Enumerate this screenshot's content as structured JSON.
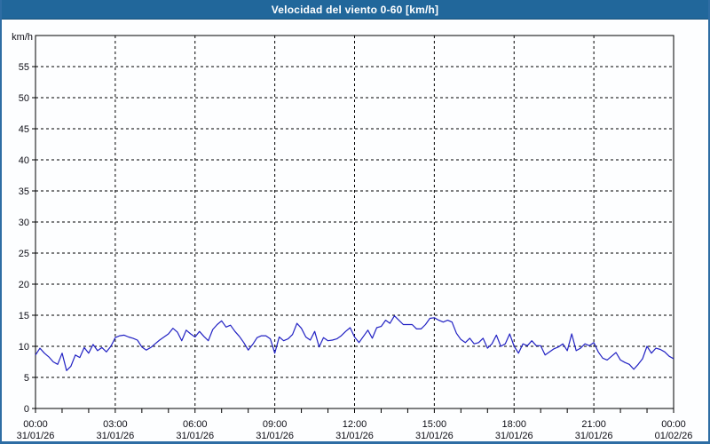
{
  "header": {
    "title": "Velocidad del viento 0-60 [km/h]"
  },
  "colors": {
    "header_bg": "#21679b",
    "frame_border": "#2e6da4",
    "plot_bg": "#fdfeff",
    "grid_color": "#000000",
    "line_color": "#2121c3",
    "title_color": "#ffffff",
    "tick_text_color": "#0c0c14"
  },
  "chart_data": {
    "type": "line",
    "title": "Velocidad del viento 0-60 [km/h]",
    "ylabel": "km/h",
    "ylim": [
      0,
      60
    ],
    "grid": "dashed",
    "legend": "none",
    "y_ticks": [
      0,
      5,
      10,
      15,
      20,
      25,
      30,
      35,
      40,
      45,
      50,
      55
    ],
    "x_hours_range": [
      0,
      24
    ],
    "x_axis": {
      "minor_tick_every_hours": 1,
      "major_tick_every_hours": 3,
      "labels": [
        {
          "hour": 0,
          "time": "00:00",
          "date": "31/01/26"
        },
        {
          "hour": 3,
          "time": "03:00",
          "date": "31/01/26"
        },
        {
          "hour": 6,
          "time": "06:00",
          "date": "31/01/26"
        },
        {
          "hour": 9,
          "time": "09:00",
          "date": "31/01/26"
        },
        {
          "hour": 12,
          "time": "12:00",
          "date": "31/01/26"
        },
        {
          "hour": 15,
          "time": "15:00",
          "date": "31/01/26"
        },
        {
          "hour": 18,
          "time": "18:00",
          "date": "31/01/26"
        },
        {
          "hour": 21,
          "time": "21:00",
          "date": "31/01/26"
        },
        {
          "hour": 24,
          "time": "00:00",
          "date": "01/02/26"
        }
      ]
    },
    "series": [
      {
        "name": "Velocidad del viento",
        "start_hour": 0,
        "interval_minutes": 10,
        "unit": "km/h",
        "values": [
          8.6,
          9.7,
          8.9,
          8.3,
          7.5,
          7.1,
          8.9,
          6.1,
          6.8,
          8.6,
          8.2,
          9.8,
          8.9,
          10.3,
          9.3,
          9.8,
          9.1,
          10.0,
          11.4,
          11.7,
          11.8,
          11.5,
          11.3,
          11.0,
          9.9,
          9.4,
          9.8,
          10.4,
          11.0,
          11.5,
          12.0,
          12.9,
          12.3,
          10.9,
          12.6,
          12.0,
          11.5,
          12.4,
          11.6,
          10.9,
          12.7,
          13.5,
          14.1,
          13.1,
          13.4,
          12.4,
          11.6,
          10.6,
          9.4,
          10.3,
          11.4,
          11.7,
          11.7,
          11.2,
          8.9,
          11.5,
          10.9,
          11.2,
          11.9,
          13.7,
          12.9,
          11.5,
          11.0,
          12.4,
          9.9,
          11.4,
          10.9,
          11.0,
          11.2,
          11.7,
          12.4,
          13.0,
          11.5,
          10.6,
          11.6,
          12.6,
          11.3,
          13.0,
          13.2,
          14.2,
          13.7,
          14.9,
          14.2,
          13.5,
          13.5,
          13.5,
          12.8,
          12.8,
          13.5,
          14.5,
          14.6,
          14.2,
          13.9,
          14.2,
          13.9,
          12.1,
          11.1,
          10.6,
          11.3,
          10.4,
          10.6,
          11.3,
          9.7,
          10.4,
          11.8,
          10.0,
          10.4,
          12.0,
          10.0,
          8.9,
          10.4,
          10.1,
          10.9,
          10.1,
          10.1,
          8.6,
          9.1,
          9.6,
          9.9,
          10.4,
          9.3,
          12.0,
          9.3,
          9.7,
          10.4,
          10.1,
          10.6,
          9.1,
          8.1,
          7.8,
          8.4,
          9.0,
          7.8,
          7.4,
          7.1,
          6.3,
          7.1,
          8.0,
          10.0,
          8.9,
          9.7,
          9.5,
          9.1,
          8.4,
          8.0
        ]
      }
    ]
  }
}
